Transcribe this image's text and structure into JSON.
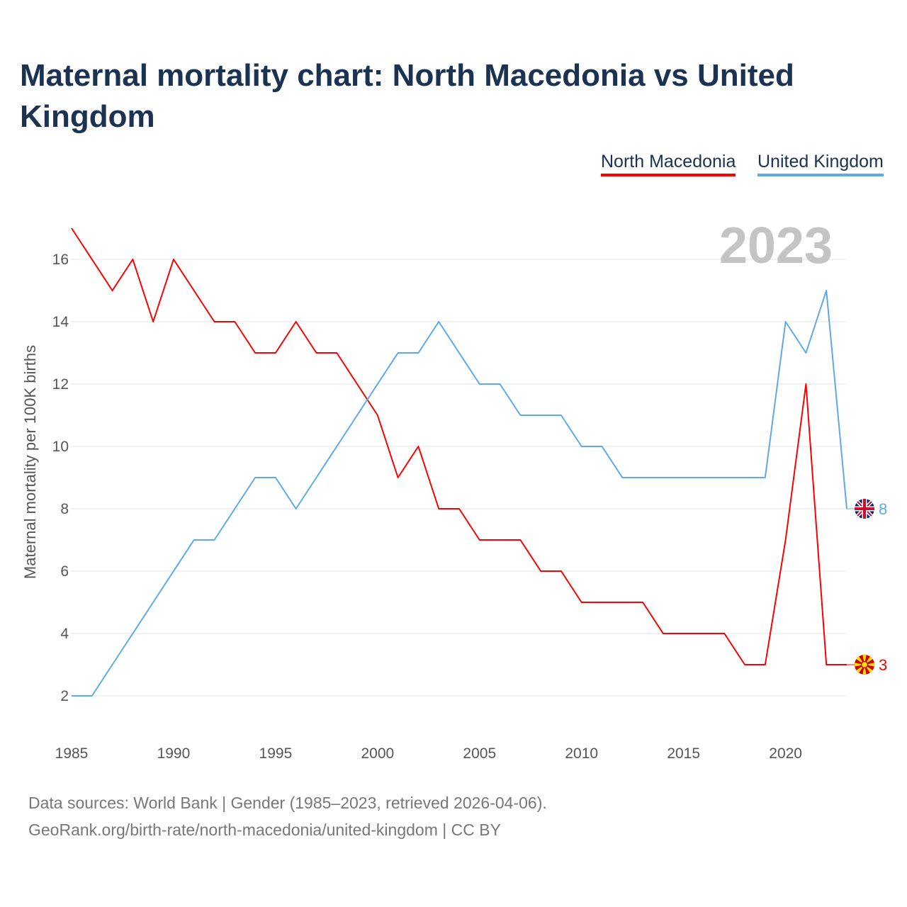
{
  "chart_data": {
    "type": "line",
    "title": "Maternal mortality chart: North Macedonia vs United Kingdom",
    "xlabel": "",
    "ylabel": "Maternal mortality per 100K births",
    "xlim": [
      1985,
      2023
    ],
    "ylim": [
      1,
      17
    ],
    "x_ticks": [
      "1985",
      "1990",
      "1995",
      "2000",
      "2005",
      "2010",
      "2015",
      "2020"
    ],
    "y_ticks": [
      "2",
      "4",
      "6",
      "8",
      "10",
      "12",
      "14",
      "16"
    ],
    "grid": true,
    "legend_position": "top-right",
    "year_label": "2023",
    "x": [
      1985,
      1986,
      1987,
      1988,
      1989,
      1990,
      1991,
      1992,
      1993,
      1994,
      1995,
      1996,
      1997,
      1998,
      1999,
      2000,
      2001,
      2002,
      2003,
      2004,
      2005,
      2006,
      2007,
      2008,
      2009,
      2010,
      2011,
      2012,
      2013,
      2014,
      2015,
      2016,
      2017,
      2018,
      2019,
      2020,
      2021,
      2022,
      2023
    ],
    "series": [
      {
        "name": "North Macedonia",
        "color": "#ff0000",
        "end_label": "3",
        "flag": "north-macedonia-flag",
        "values": [
          17,
          16,
          15,
          16,
          14,
          16,
          15,
          14,
          14,
          13,
          13,
          14,
          13,
          13,
          12,
          11,
          9,
          10,
          8,
          8,
          7,
          7,
          7,
          6,
          6,
          5,
          5,
          5,
          5,
          4,
          4,
          4,
          4,
          3,
          3,
          7,
          12,
          3,
          3
        ]
      },
      {
        "name": "United Kingdom",
        "color": "#5ea8ec",
        "end_label": "8",
        "flag": "united-kingdom-flag",
        "values": [
          2,
          2,
          3,
          4,
          5,
          6,
          7,
          7,
          8,
          9,
          9,
          8,
          9,
          10,
          11,
          12,
          13,
          13,
          14,
          13,
          12,
          12,
          11,
          11,
          11,
          10,
          10,
          9,
          9,
          9,
          9,
          9,
          9,
          9,
          9,
          14,
          13,
          15,
          8
        ]
      }
    ]
  },
  "footer": {
    "line1": "Data sources: World Bank | Gender (1985–2023, retrieved 2026-04-06).",
    "line2": "GeoRank.org/birth-rate/north-macedonia/united-kingdom | CC BY"
  }
}
